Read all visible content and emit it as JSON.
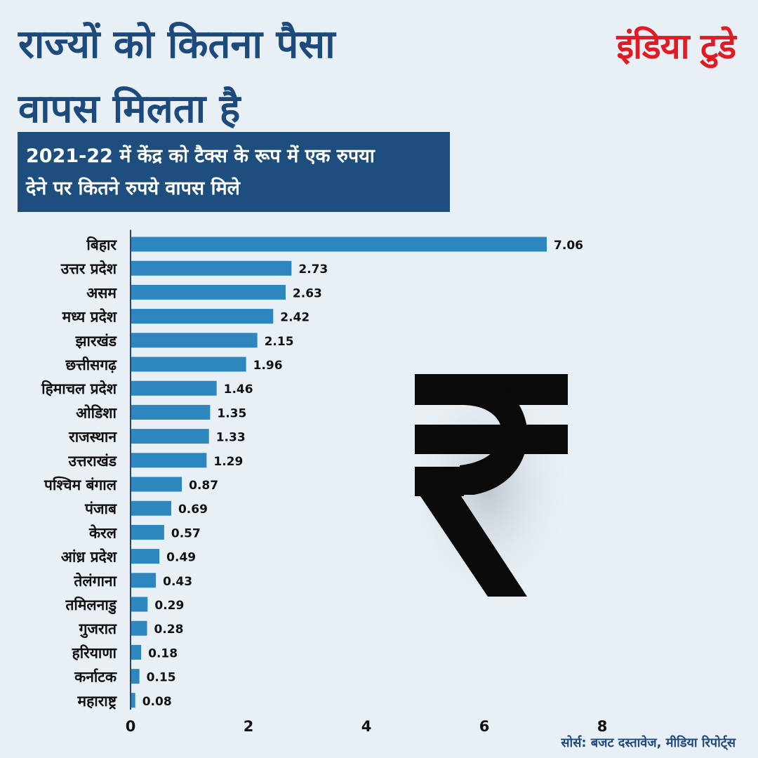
{
  "title": {
    "line1": "राज्यों को कितना पैसा",
    "line2": "वापस मिलता है"
  },
  "brand": "इंडिया टुडे",
  "subtitle": {
    "line1": "2021-22 में केंद्र को टैक्स के रूप में एक रुपया",
    "line2": "देने पर कितने रुपये वापस मिले"
  },
  "watermark_icon": "rupee-icon",
  "source": "सोर्स: बजट दस्तावेज, मीडिया रिपोर्ट्स",
  "colors": {
    "bar": "#2e86bf",
    "title": "#1d4a7c",
    "brand": "#e01b24",
    "subtitle_bg": "#1e4e7e",
    "background": "#e8f0f6"
  },
  "chart_data": {
    "type": "bar",
    "orientation": "horizontal",
    "categories": [
      "बिहार",
      "उत्तर प्रदेश",
      "असम",
      "मध्य प्रदेश",
      "झारखंड",
      "छत्तीसगढ़",
      "हिमाचल प्रदेश",
      "ओडिशा",
      "राजस्थान",
      "उत्तराखंड",
      "पश्चिम बंगाल",
      "पंजाब",
      "केरल",
      "आंध्र प्रदेश",
      "तेलंगाना",
      "तमिलनाडु",
      "गुजरात",
      "हरियाणा",
      "कर्नाटक",
      "महाराष्ट्र"
    ],
    "values": [
      7.06,
      2.73,
      2.63,
      2.42,
      2.15,
      1.96,
      1.46,
      1.35,
      1.33,
      1.29,
      0.87,
      0.69,
      0.57,
      0.49,
      0.43,
      0.29,
      0.28,
      0.18,
      0.15,
      0.08
    ],
    "value_labels": [
      "7.06",
      "2.73",
      "2.63",
      "2.42",
      "2.15",
      "1.96",
      "1.46",
      "1.35",
      "1.33",
      "1.29",
      "0.87",
      "0.69",
      "0.57",
      "0.49",
      "0.43",
      "0.29",
      "0.28",
      "0.18",
      "0.15",
      "0.08"
    ],
    "xlim": [
      0,
      8
    ],
    "xticks": [
      "0",
      "2",
      "4",
      "6",
      "8"
    ],
    "grid": false,
    "legend": false
  }
}
